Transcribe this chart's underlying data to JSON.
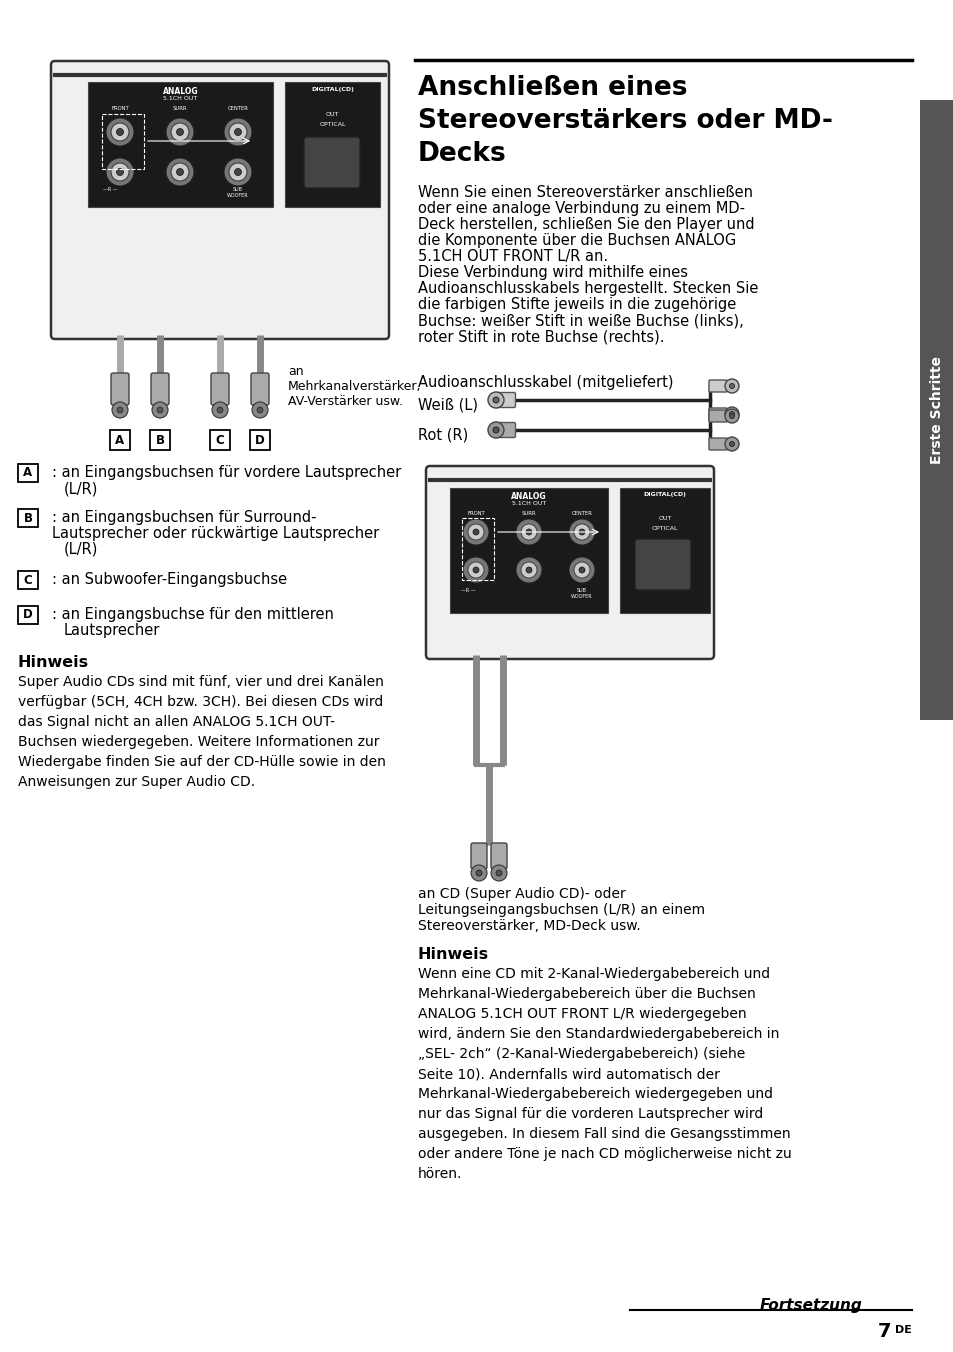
{
  "bg_color": "#ffffff",
  "title_line1": "Anschließen eines",
  "title_line2": "Stereoverstärkers oder MD-",
  "title_line3": "Decks",
  "sidebar_text": "Erste Schritte",
  "page_number": "7",
  "page_suffix": "DE",
  "fortsetzung": "Fortsetzung",
  "cable_label": "Audioanschlusskabel (mitgeliefert)",
  "weiss_label": "Weiß (L)",
  "rot_label": "Rot (R)",
  "caption1_line1": "an",
  "caption1_line2": "Mehrkanalverstärker,",
  "caption1_line3": "AV-Verstärker usw.",
  "caption2_line1": "an CD (Super Audio CD)- oder",
  "caption2_line2": "Leitungseingangsbuchsen (L/R) an einem",
  "caption2_line3": "Stereoverstärker, MD-Deck usw.",
  "hinweis1_title": "Hinweis",
  "hinweis1_text": "Super Audio CDs sind mit fünf, vier und drei Kanälen\nverfügbar (5CH, 4CH bzw. 3CH). Bei diesen CDs wird\ndas Signal nicht an allen ANALOG 5.1CH OUT-\nBuchsen wiedergegeben. Weitere Informationen zur\nWiedergabe finden Sie auf der CD-Hülle sowie in den\nAnweisungen zur Super Audio CD.",
  "hinweis2_title": "Hinweis",
  "hinweis2_text": "Wenn eine CD mit 2-Kanal-Wiedergabebereich und\nMehrkanal-Wiedergabebereich über die Buchsen\nANALOG 5.1CH OUT FRONT L/R wiedergegeben\nwird, ändern Sie den Standardwiedergabebereich in\n„SEL- 2ch“ (2-Kanal-Wiedergabebereich) (siehe\nSeite 10). Andernfalls wird automatisch der\nMehrkanal-Wiedergabebereich wiedergegeben und\nnur das Signal für die vorderen Lautsprecher wird\nausgegeben. In diesem Fall sind die Gesangsstimmen\noder andere Töne je nach CD möglicherweise nicht zu\nhören.",
  "main_text_lines": [
    "Wenn Sie einen Stereoverstärker anschließen",
    "oder eine analoge Verbindung zu einem MD-",
    "Deck herstellen, schließen Sie den Player und",
    "die Komponente über die Buchsen ANALOG",
    "5.1CH OUT FRONT L/R an.",
    "Diese Verbindung wird mithilfe eines",
    "Audioanschlusskabels hergestellt. Stecken Sie",
    "die farbigen Stifte jeweils in die zugehörige",
    "Buchse: weißer Stift in weiße Buchse (links),",
    "roter Stift in rote Buchse (rechts)."
  ],
  "desc_A_line1": ": an Eingangsbuchsen für vordere Lautsprecher",
  "desc_A_line2": "(L/R)",
  "desc_B_line1": ": an Eingangsbuchsen für Surround-",
  "desc_B_line2": "Lautsprecher oder rückwärtige Lautsprecher",
  "desc_B_line3": "(L/R)",
  "desc_C_line1": ": an Subwoofer-Eingangsbuchse",
  "desc_D_line1": ": an Eingangsbuchse für den mittleren",
  "desc_D_line2": "Lautsprecher"
}
